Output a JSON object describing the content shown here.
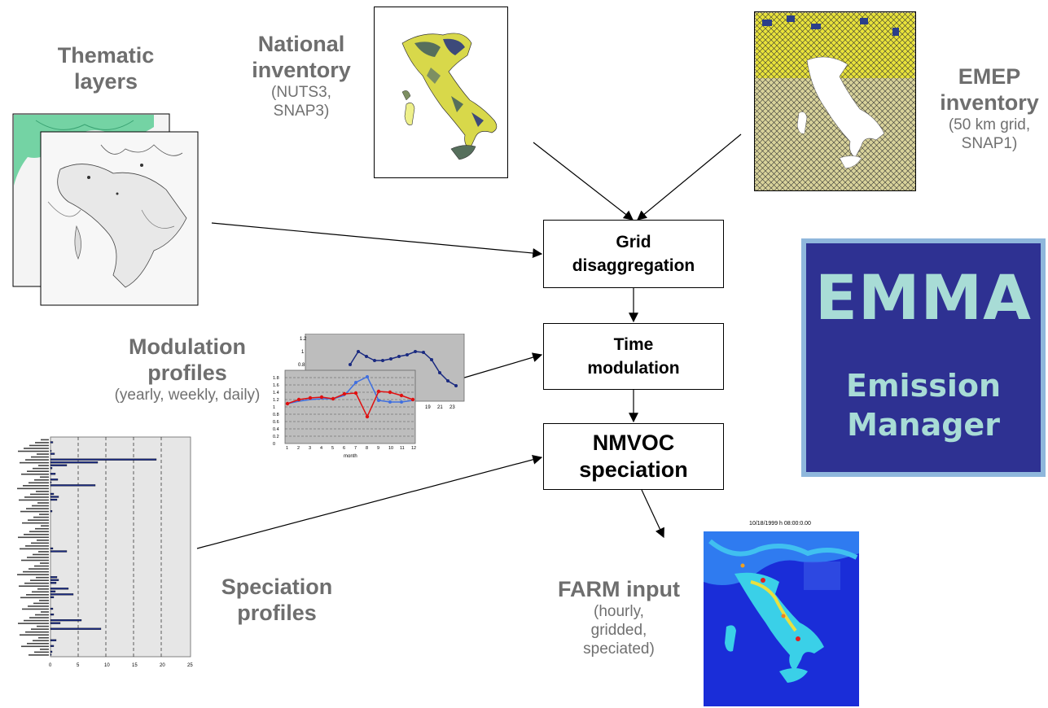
{
  "labels": {
    "thematic": {
      "title_line1": "Thematic",
      "title_line2": "layers"
    },
    "national": {
      "title_line1": "National",
      "title_line2": "inventory",
      "sub_line1": "(NUTS3,",
      "sub_line2": "SNAP3)"
    },
    "emep": {
      "title_line1": "EMEP",
      "title_line2": "inventory",
      "sub_line1": "(50 km grid,",
      "sub_line2": "SNAP1)"
    },
    "modulation": {
      "title_line1": "Modulation",
      "title_line2": "profiles",
      "sub_line1": "(yearly, weekly, daily)"
    },
    "speciation": {
      "title_line1": "Speciation",
      "title_line2": "profiles"
    },
    "farm": {
      "title_line1": "FARM input",
      "sub_line1": "(hourly,",
      "sub_line2": "gridded,",
      "sub_line3": "speciated)"
    }
  },
  "process_boxes": {
    "grid": {
      "line1": "Grid",
      "line2": "disaggregation"
    },
    "time": {
      "line1": "Time",
      "line2": "modulation"
    },
    "nmvoc": {
      "line1": "NMVOC",
      "line2": "speciation"
    }
  },
  "emma_panel": {
    "title": "EMMA",
    "sub_line1": "Emission",
    "sub_line2": "Manager"
  },
  "modulation_chart": {
    "x_label": "month",
    "back_ticks": [
      "1.2",
      "1",
      "0.8"
    ],
    "front_ticks": [
      "1.8",
      "1.6",
      "1.4",
      "1.2",
      "1",
      "0.8",
      "0.6",
      "0.4",
      "0.2",
      "0"
    ],
    "x_ticks": [
      "1",
      "2",
      "3",
      "4",
      "5",
      "6",
      "7",
      "8",
      "9",
      "10",
      "11",
      "12"
    ],
    "back_x_ticks": [
      "19",
      "21",
      "23"
    ]
  },
  "speciation_chart": {
    "x_ticks": [
      "0",
      "5",
      "10",
      "15",
      "20",
      "25"
    ]
  },
  "farm_map": {
    "timestamp": "10/18/1999 h 08:00:0.00"
  },
  "colors": {
    "emma_bg": "#2e3192",
    "emma_border": "#8fb7dc",
    "emma_text": "#a8dcd6",
    "label_gray": "#6e6e6e"
  }
}
